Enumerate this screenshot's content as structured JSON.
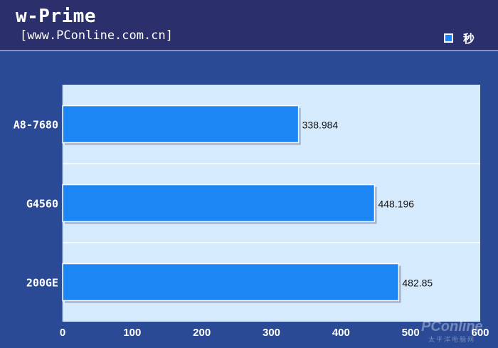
{
  "header": {
    "title": "w-Prime",
    "subtitle": "[www.PConline.com.cn]"
  },
  "legend": {
    "label": "秒",
    "color": "#1c86f5"
  },
  "watermark": {
    "brand": "PConline",
    "cn": "太平洋电脑网"
  },
  "chart_data": {
    "type": "bar",
    "orientation": "horizontal",
    "title": "w-Prime",
    "categories": [
      "A8-7680",
      "G4560",
      "200GE"
    ],
    "series": [
      {
        "name": "秒",
        "values": [
          338.984,
          448.196,
          482.85
        ],
        "value_labels": [
          "338.984",
          "448.196",
          "482.85"
        ]
      }
    ],
    "xlim": [
      0,
      600
    ],
    "xticks": [
      "0",
      "100",
      "200",
      "300",
      "400",
      "500",
      "600"
    ],
    "grid": true,
    "legend_position": "top-right",
    "colors": {
      "bar": "#1c86f5",
      "plot_bg": "#d6eafd",
      "frame_bg": "#2b4a95"
    }
  }
}
